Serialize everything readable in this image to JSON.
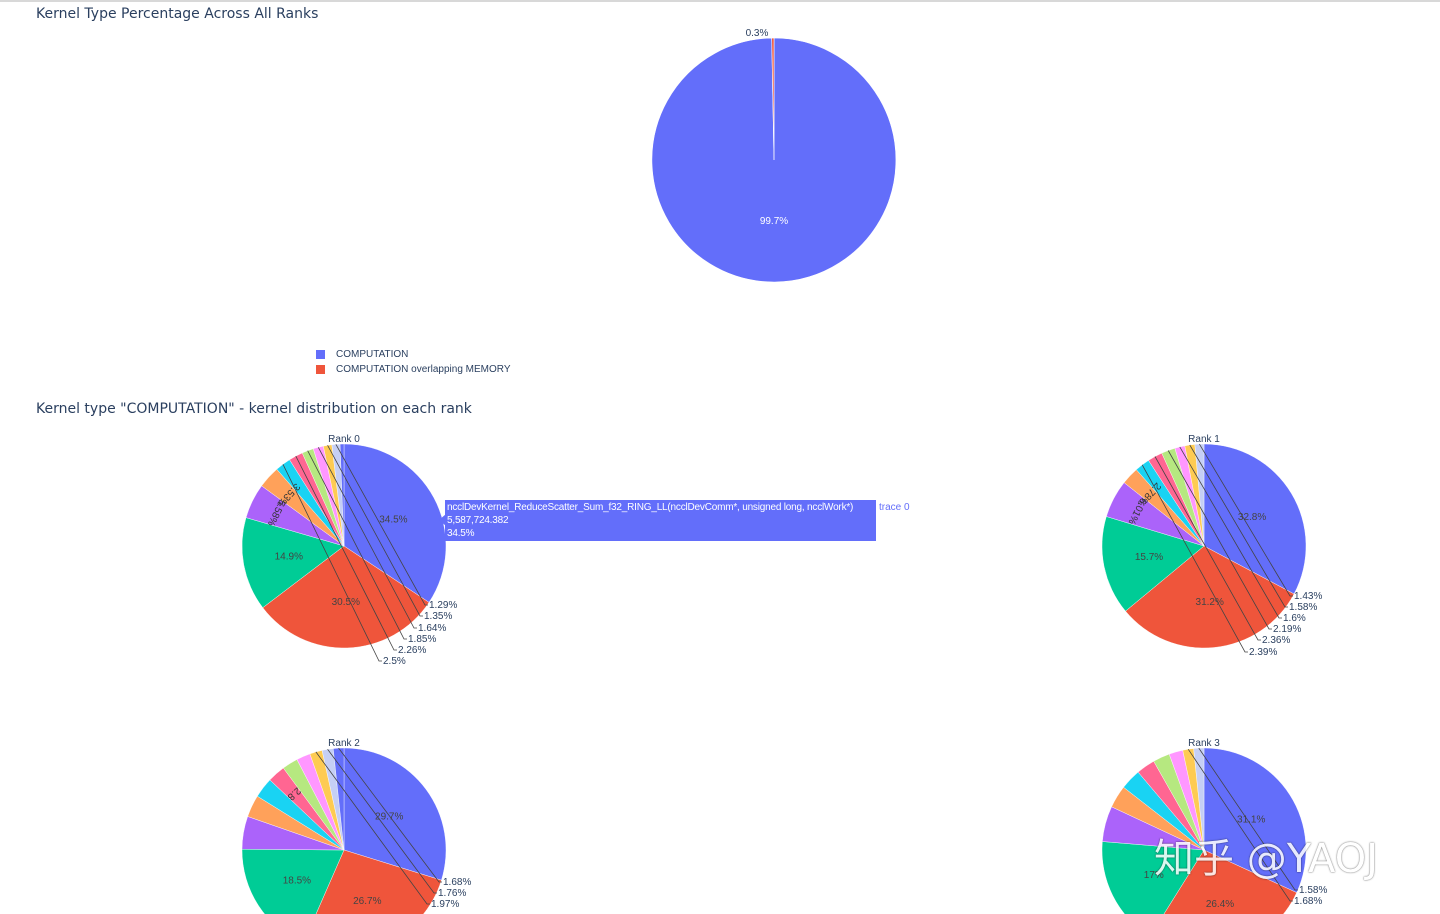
{
  "page": {
    "title_1": "Kernel Type Percentage Across All Ranks",
    "title_2": "Kernel type \"COMPUTATION\" - kernel distribution on each rank",
    "watermark": "知乎 @YAOJ"
  },
  "legend": {
    "items": [
      {
        "label": "COMPUTATION",
        "color": "#636efa"
      },
      {
        "label": "COMPUTATION overlapping MEMORY",
        "color": "#ef553b"
      }
    ]
  },
  "tooltip": {
    "name": "ncclDevKernel_ReduceScatter_Sum_f32_RING_LL(ncclDevComm*, unsigned long, ncclWork*)",
    "value": "5,587,724.382",
    "percent": "34.5%",
    "trace": "trace 0"
  },
  "palette": [
    "#636efa",
    "#ef553b",
    "#00cc96",
    "#ab63fa",
    "#ffa15a",
    "#19d3f3",
    "#ff6692",
    "#b6e880",
    "#ff97ff",
    "#fecb52",
    "#c5cff5"
  ],
  "chart_data": [
    {
      "type": "pie",
      "name": "overall",
      "title": "Kernel Type Percentage Across All Ranks",
      "labels": [
        "COMPUTATION",
        "COMPUTATION overlapping MEMORY"
      ],
      "values": [
        99.7,
        0.3
      ],
      "text_labels": [
        "99.7%",
        "0.3%"
      ]
    },
    {
      "type": "pie",
      "title": "Rank 0",
      "values": [
        34.5,
        30.5,
        14.9,
        5.58,
        3.53,
        2.5,
        2.26,
        1.85,
        1.64,
        1.35,
        1.29,
        0.62
      ],
      "text_labels": [
        "34.5%",
        "30.5%",
        "14.9%",
        "5.58%",
        "3.53%",
        "2.5%",
        "2.26%",
        "1.85%",
        "1.64%",
        "1.35%",
        "1.29%",
        ""
      ]
    },
    {
      "type": "pie",
      "title": "Rank 1",
      "values": [
        32.8,
        31.2,
        15.7,
        6.01,
        2.78,
        2.39,
        2.36,
        2.19,
        1.6,
        1.58,
        1.43
      ],
      "text_labels": [
        "32.8%",
        "31.2%",
        "15.7%",
        "6.01%",
        "2.78%",
        "2.39%",
        "2.36%",
        "2.19%",
        "1.6%",
        "1.58%",
        "1.43%"
      ]
    },
    {
      "type": "pie",
      "title": "Rank 2",
      "values": [
        29.7,
        26.7,
        18.5,
        5.2,
        3.5,
        3.2,
        2.8,
        2.5,
        2.2,
        1.97,
        1.76,
        1.68
      ],
      "text_labels": [
        "29.7%",
        "26.7%",
        "18.5%",
        "",
        "",
        "",
        "2.8",
        "",
        "",
        "1.97%",
        "1.76%",
        "1.68%"
      ]
    },
    {
      "type": "pie",
      "title": "Rank 3",
      "values": [
        31.1,
        26.4,
        17,
        5.5,
        3.5,
        3.2,
        2.9,
        2.6,
        2.15,
        1.68,
        1.58
      ],
      "text_labels": [
        "31.1%",
        "26.4%",
        "17%",
        "",
        "",
        "",
        "",
        "",
        "",
        "1.68%",
        "1.58%"
      ]
    }
  ]
}
